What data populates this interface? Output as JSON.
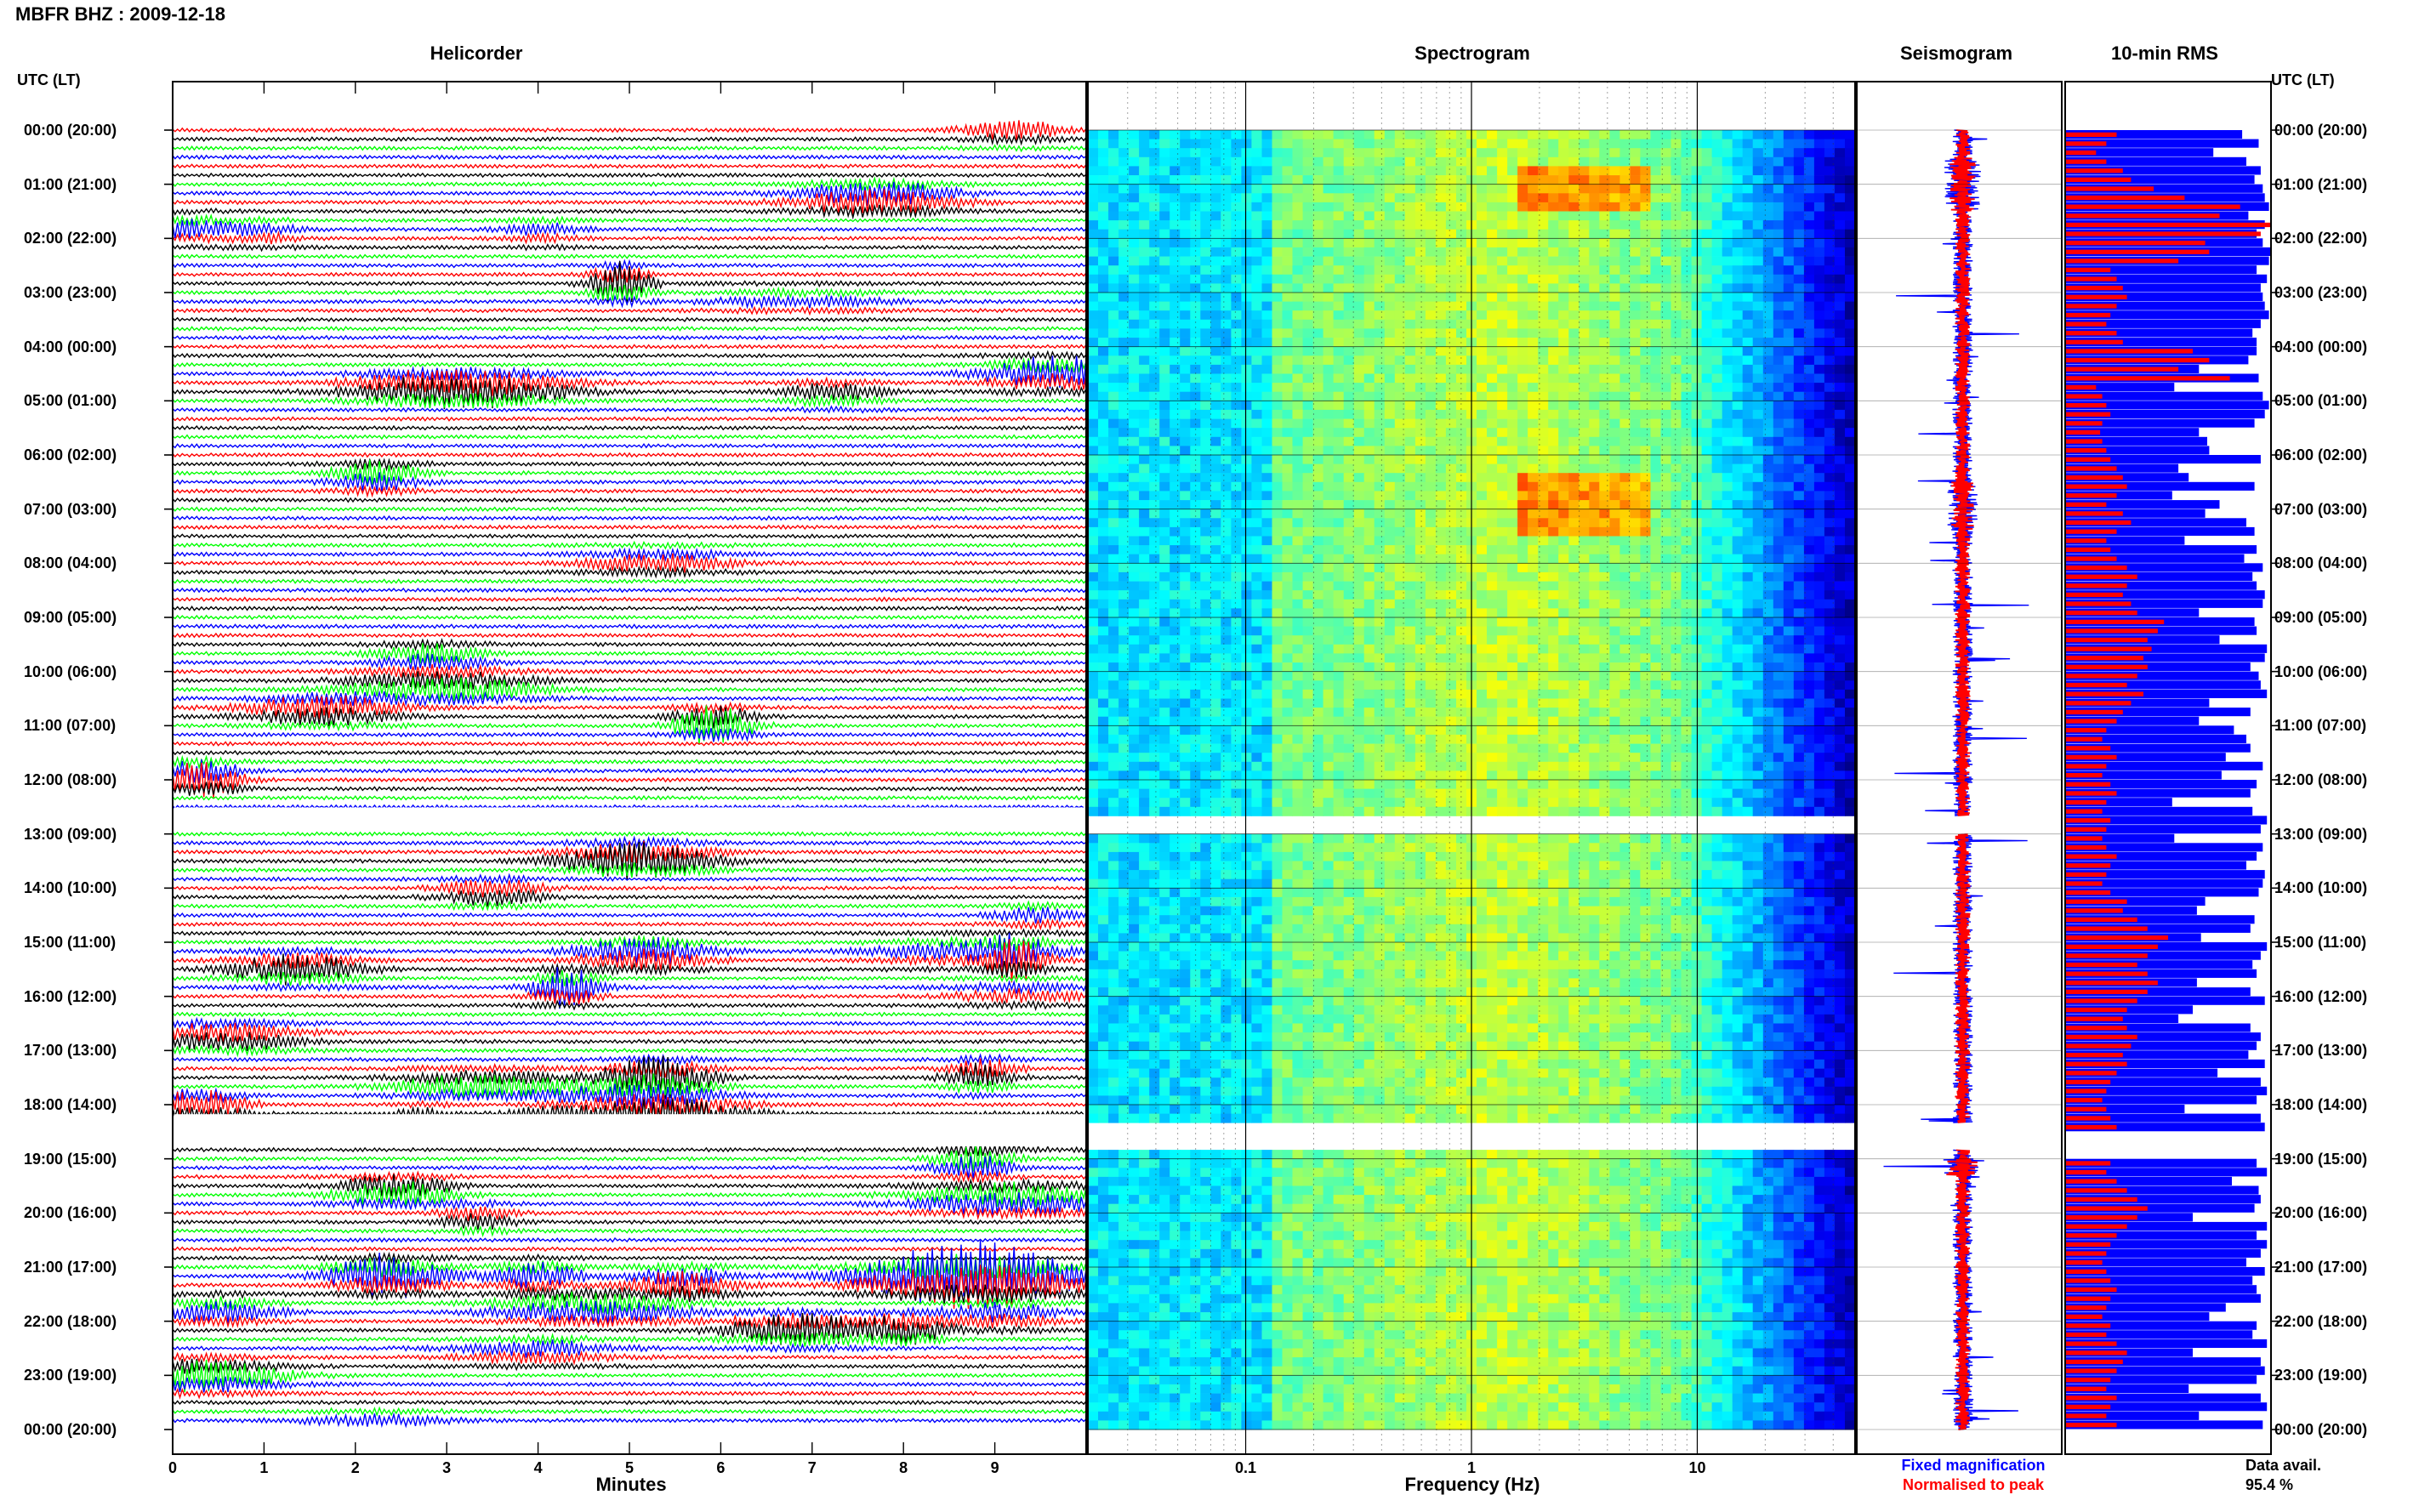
{
  "header": {
    "station_title": "MBFR BHZ : 2009-12-18"
  },
  "panels": {
    "helicorder": "Helicorder",
    "spectrogram": "Spectrogram",
    "seismogram": "Seismogram",
    "rms": "10-min RMS"
  },
  "time_axis": {
    "title_left": "UTC (LT)",
    "title_right": "UTC (LT)",
    "labels": [
      "00:00 (20:00)",
      "01:00 (21:00)",
      "02:00 (22:00)",
      "03:00 (23:00)",
      "04:00 (00:00)",
      "05:00 (01:00)",
      "06:00 (02:00)",
      "07:00 (03:00)",
      "08:00 (04:00)",
      "09:00 (05:00)",
      "10:00 (06:00)",
      "11:00 (07:00)",
      "12:00 (08:00)",
      "13:00 (09:00)",
      "14:00 (10:00)",
      "15:00 (11:00)",
      "16:00 (12:00)",
      "17:00 (13:00)",
      "18:00 (14:00)",
      "19:00 (15:00)",
      "20:00 (16:00)",
      "21:00 (17:00)",
      "22:00 (18:00)",
      "23:00 (19:00)",
      "00:00 (20:00)"
    ]
  },
  "legend": {
    "fixed": "Fixed magnification",
    "normalised": "Normalised to peak",
    "data_avail_label": "Data avail.",
    "data_avail_value": "95.4 %"
  },
  "colors": {
    "trace_red": "#ff0000",
    "trace_black": "#000000",
    "trace_green": "#00ff00",
    "trace_blue": "#0000ff",
    "rms_fixed": "#0000ff",
    "rms_norm": "#ff0000"
  },
  "chart_data": [
    {
      "type": "line",
      "title": "Helicorder",
      "xlabel": "Minutes",
      "xlim": [
        0,
        10
      ],
      "x_ticks": [
        "0",
        "1",
        "2",
        "3",
        "4",
        "5",
        "6",
        "7",
        "8",
        "9"
      ],
      "rows": 144,
      "row_minutes": 10,
      "trace_color_cycle": [
        "red",
        "black",
        "green",
        "blue"
      ],
      "data_gaps_utc": [
        "12:40-13:00",
        "18:20-18:50"
      ]
    },
    {
      "type": "heatmap",
      "title": "Spectrogram",
      "xlabel": "Frequency (Hz)",
      "x_scale": "log",
      "xlim": [
        0.02,
        50
      ],
      "x_ticks": [
        "0.1",
        "1",
        "10"
      ],
      "rows": 144,
      "colormap": "jet"
    },
    {
      "type": "line",
      "title": "Seismogram",
      "series": [
        {
          "name": "Fixed magnification",
          "color": "blue"
        },
        {
          "name": "Normalised to peak",
          "color": "red"
        }
      ],
      "rows": 144
    },
    {
      "type": "bar",
      "title": "10-min RMS",
      "orientation": "horizontal",
      "rows": 144,
      "series": [
        {
          "name": "Fixed magnification",
          "color": "blue",
          "values": [
            0.86,
            0.94,
            0.72,
            0.88,
            0.95,
            0.92,
            0.96,
            0.97,
            0.99,
            0.89,
            0.97,
            0.93,
            0.96,
            1.0,
            0.99,
            0.93,
            0.98,
            0.95,
            0.96,
            0.97,
            0.99,
            0.95,
            0.91,
            0.93,
            0.93,
            0.89,
            0.65,
            0.94,
            0.53,
            0.96,
            0.99,
            0.97,
            0.92,
            0.65,
            0.69,
            0.7,
            0.95,
            0.55,
            0.6,
            0.92,
            0.52,
            0.75,
            0.68,
            0.88,
            0.92,
            0.58,
            0.93,
            0.87,
            0.96,
            0.91,
            0.93,
            0.97,
            0.96,
            0.65,
            0.92,
            0.93,
            0.75,
            0.98,
            0.97,
            0.9,
            0.94,
            0.95,
            0.98,
            0.7,
            0.9,
            0.65,
            0.82,
            0.88,
            0.9,
            0.78,
            0.96,
            0.76,
            0.93,
            0.9,
            0.52,
            0.91,
            0.98,
            0.95,
            0.53,
            0.96,
            0.93,
            0.88,
            0.97,
            0.96,
            0.94,
            0.68,
            0.64,
            0.92,
            0.9,
            0.66,
            0.98,
            0.95,
            0.91,
            0.93,
            0.64,
            0.9,
            0.97,
            0.62,
            0.55,
            0.9,
            0.95,
            0.93,
            0.89,
            0.97,
            0.74,
            0.95,
            0.98,
            0.93,
            0.58,
            0.95,
            0.97,
            null,
            null,
            null,
            0.93,
            0.98,
            0.81,
            0.94,
            0.95,
            0.92,
            0.62,
            0.98,
            0.93,
            0.98,
            0.95,
            0.88,
            0.97,
            0.91,
            0.93,
            0.95,
            0.78,
            0.7,
            0.93,
            0.91,
            0.98,
            0.62,
            0.95,
            0.97,
            0.93,
            0.6,
            0.95,
            0.98,
            0.65,
            0.96
          ]
        },
        {
          "name": "Normalised to peak",
          "color": "red",
          "values": [
            0.25,
            0.2,
            0.15,
            0.2,
            0.28,
            0.32,
            0.43,
            0.58,
            0.85,
            0.75,
            1.0,
            0.95,
            0.68,
            0.7,
            0.55,
            0.22,
            0.25,
            0.28,
            0.3,
            0.25,
            0.22,
            0.2,
            0.25,
            0.28,
            0.62,
            0.7,
            0.55,
            0.8,
            0.15,
            0.18,
            0.2,
            0.22,
            0.18,
            0.17,
            0.18,
            0.2,
            0.22,
            0.25,
            0.28,
            0.3,
            0.25,
            0.2,
            0.28,
            0.32,
            0.25,
            0.2,
            0.22,
            0.25,
            0.3,
            0.35,
            0.3,
            0.28,
            0.32,
            0.35,
            0.48,
            0.45,
            0.4,
            0.42,
            0.38,
            0.4,
            0.35,
            0.3,
            0.38,
            0.32,
            0.28,
            0.25,
            0.2,
            0.18,
            0.22,
            0.25,
            0.2,
            0.18,
            0.22,
            0.25,
            0.2,
            0.18,
            0.22,
            0.2,
            0.18,
            0.2,
            0.25,
            0.22,
            0.2,
            0.18,
            0.22,
            0.3,
            0.28,
            0.35,
            0.4,
            0.5,
            0.45,
            0.4,
            0.35,
            0.4,
            0.45,
            0.4,
            0.35,
            0.3,
            0.28,
            0.3,
            0.35,
            0.32,
            0.28,
            0.3,
            0.25,
            0.22,
            0.2,
            0.18,
            0.2,
            0.22,
            0.25,
            null,
            null,
            null,
            0.22,
            0.2,
            0.25,
            0.3,
            0.35,
            0.4,
            0.35,
            0.3,
            0.25,
            0.22,
            0.2,
            0.18,
            0.2,
            0.22,
            0.25,
            0.22,
            0.2,
            0.18,
            0.22,
            0.2,
            0.25,
            0.3,
            0.28,
            0.25,
            0.22,
            0.2,
            0.25,
            0.22,
            0.2,
            0.25
          ]
        }
      ]
    }
  ]
}
